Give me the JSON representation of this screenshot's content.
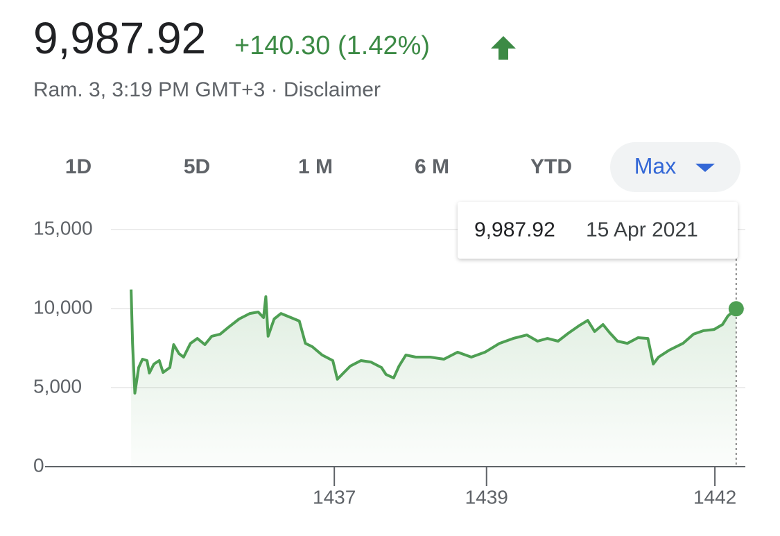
{
  "header": {
    "price": "9,987.92",
    "change": "+140.30 (1.42%)",
    "timestamp": "Ram. 3, 3:19 PM GMT+3 · Disclaimer"
  },
  "tabs": [
    "1D",
    "5D",
    "1 M",
    "6 M",
    "YTD",
    "Max"
  ],
  "selected_tab": "Max",
  "tooltip": {
    "value": "9,987.92",
    "date": "15 Apr 2021"
  },
  "chart_data": {
    "type": "line",
    "color": "#4e9f53",
    "grid": true,
    "x": [
      1434.33,
      1434.35,
      1434.38,
      1434.43,
      1434.48,
      1434.54,
      1434.57,
      1434.63,
      1434.7,
      1434.75,
      1434.84,
      1434.89,
      1434.96,
      1435.02,
      1435.11,
      1435.2,
      1435.3,
      1435.39,
      1435.5,
      1435.61,
      1435.75,
      1435.89,
      1436.0,
      1436.07,
      1436.1,
      1436.13,
      1436.21,
      1436.3,
      1436.43,
      1436.54,
      1436.62,
      1436.71,
      1436.84,
      1436.98,
      1437.04,
      1437.1,
      1437.21,
      1437.35,
      1437.48,
      1437.62,
      1437.68,
      1437.78,
      1437.85,
      1437.94,
      1438.07,
      1438.26,
      1438.44,
      1438.62,
      1438.8,
      1438.98,
      1439.17,
      1439.35,
      1439.53,
      1439.67,
      1439.8,
      1439.94,
      1440.08,
      1440.21,
      1440.33,
      1440.42,
      1440.53,
      1440.62,
      1440.72,
      1440.85,
      1440.99,
      1441.12,
      1441.19,
      1441.26,
      1441.4,
      1441.58,
      1441.72,
      1441.85,
      1441.99,
      1442.1,
      1442.17,
      1442.28
    ],
    "values": [
      11200,
      7800,
      4650,
      6270,
      6800,
      6710,
      5920,
      6490,
      6710,
      5960,
      6270,
      7720,
      7150,
      6930,
      7800,
      8110,
      7720,
      8250,
      8380,
      8820,
      9340,
      9690,
      9780,
      9430,
      10750,
      8250,
      9340,
      9690,
      9430,
      9210,
      7800,
      7590,
      7060,
      6710,
      5530,
      5830,
      6360,
      6710,
      6620,
      6270,
      5830,
      5610,
      6360,
      7060,
      6930,
      6930,
      6800,
      7240,
      6930,
      7240,
      7800,
      8110,
      8330,
      7940,
      8110,
      7940,
      8460,
      8900,
      9250,
      8550,
      8990,
      8460,
      7940,
      7800,
      8160,
      8110,
      6490,
      6930,
      7370,
      7800,
      8380,
      8600,
      8680,
      8990,
      9520,
      9987.92
    ],
    "xlim": [
      1433.2,
      1442.4
    ],
    "xticks": [
      1437,
      1439,
      1442
    ],
    "ylim": [
      0,
      15000
    ],
    "yticks": [
      0,
      {
        "value": 5000,
        "label": "5,000"
      },
      {
        "value": 10000,
        "label": "10,000"
      },
      {
        "value": 15000,
        "label": "15,000"
      }
    ]
  }
}
